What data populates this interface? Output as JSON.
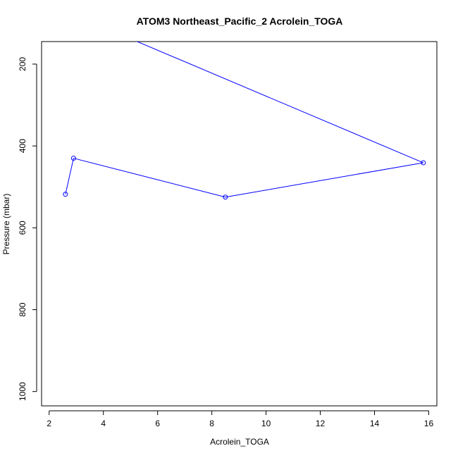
{
  "chart_data": {
    "type": "line",
    "title": "ATOM3 Northeast_Pacific_2 Acrolein_TOGA",
    "xlabel": "Acrolein_TOGA",
    "ylabel": "Pressure (mbar)",
    "xlim": [
      1.72,
      16.3
    ],
    "ylim": [
      1035,
      145
    ],
    "y_reversed": true,
    "x_ticks": [
      "2",
      "4",
      "6",
      "8",
      "10",
      "12",
      "14",
      "16"
    ],
    "y_ticks": [
      "200",
      "400",
      "600",
      "800",
      "1000"
    ],
    "x_tick_values": [
      2,
      4,
      6,
      8,
      10,
      12,
      14,
      16
    ],
    "y_tick_values": [
      200,
      400,
      600,
      800,
      1000
    ],
    "series": [
      {
        "color": "#0000ff",
        "marker": "open-circle",
        "points": [
          {
            "x": 2.6,
            "y": 518,
            "marker": true
          },
          {
            "x": 2.9,
            "y": 430,
            "marker": true
          },
          {
            "x": 8.5,
            "y": 525,
            "marker": true
          },
          {
            "x": 15.8,
            "y": 441,
            "marker": true
          },
          {
            "x": 4.0,
            "y": 110,
            "marker": false
          }
        ]
      }
    ],
    "grid": false,
    "legend": "none"
  }
}
